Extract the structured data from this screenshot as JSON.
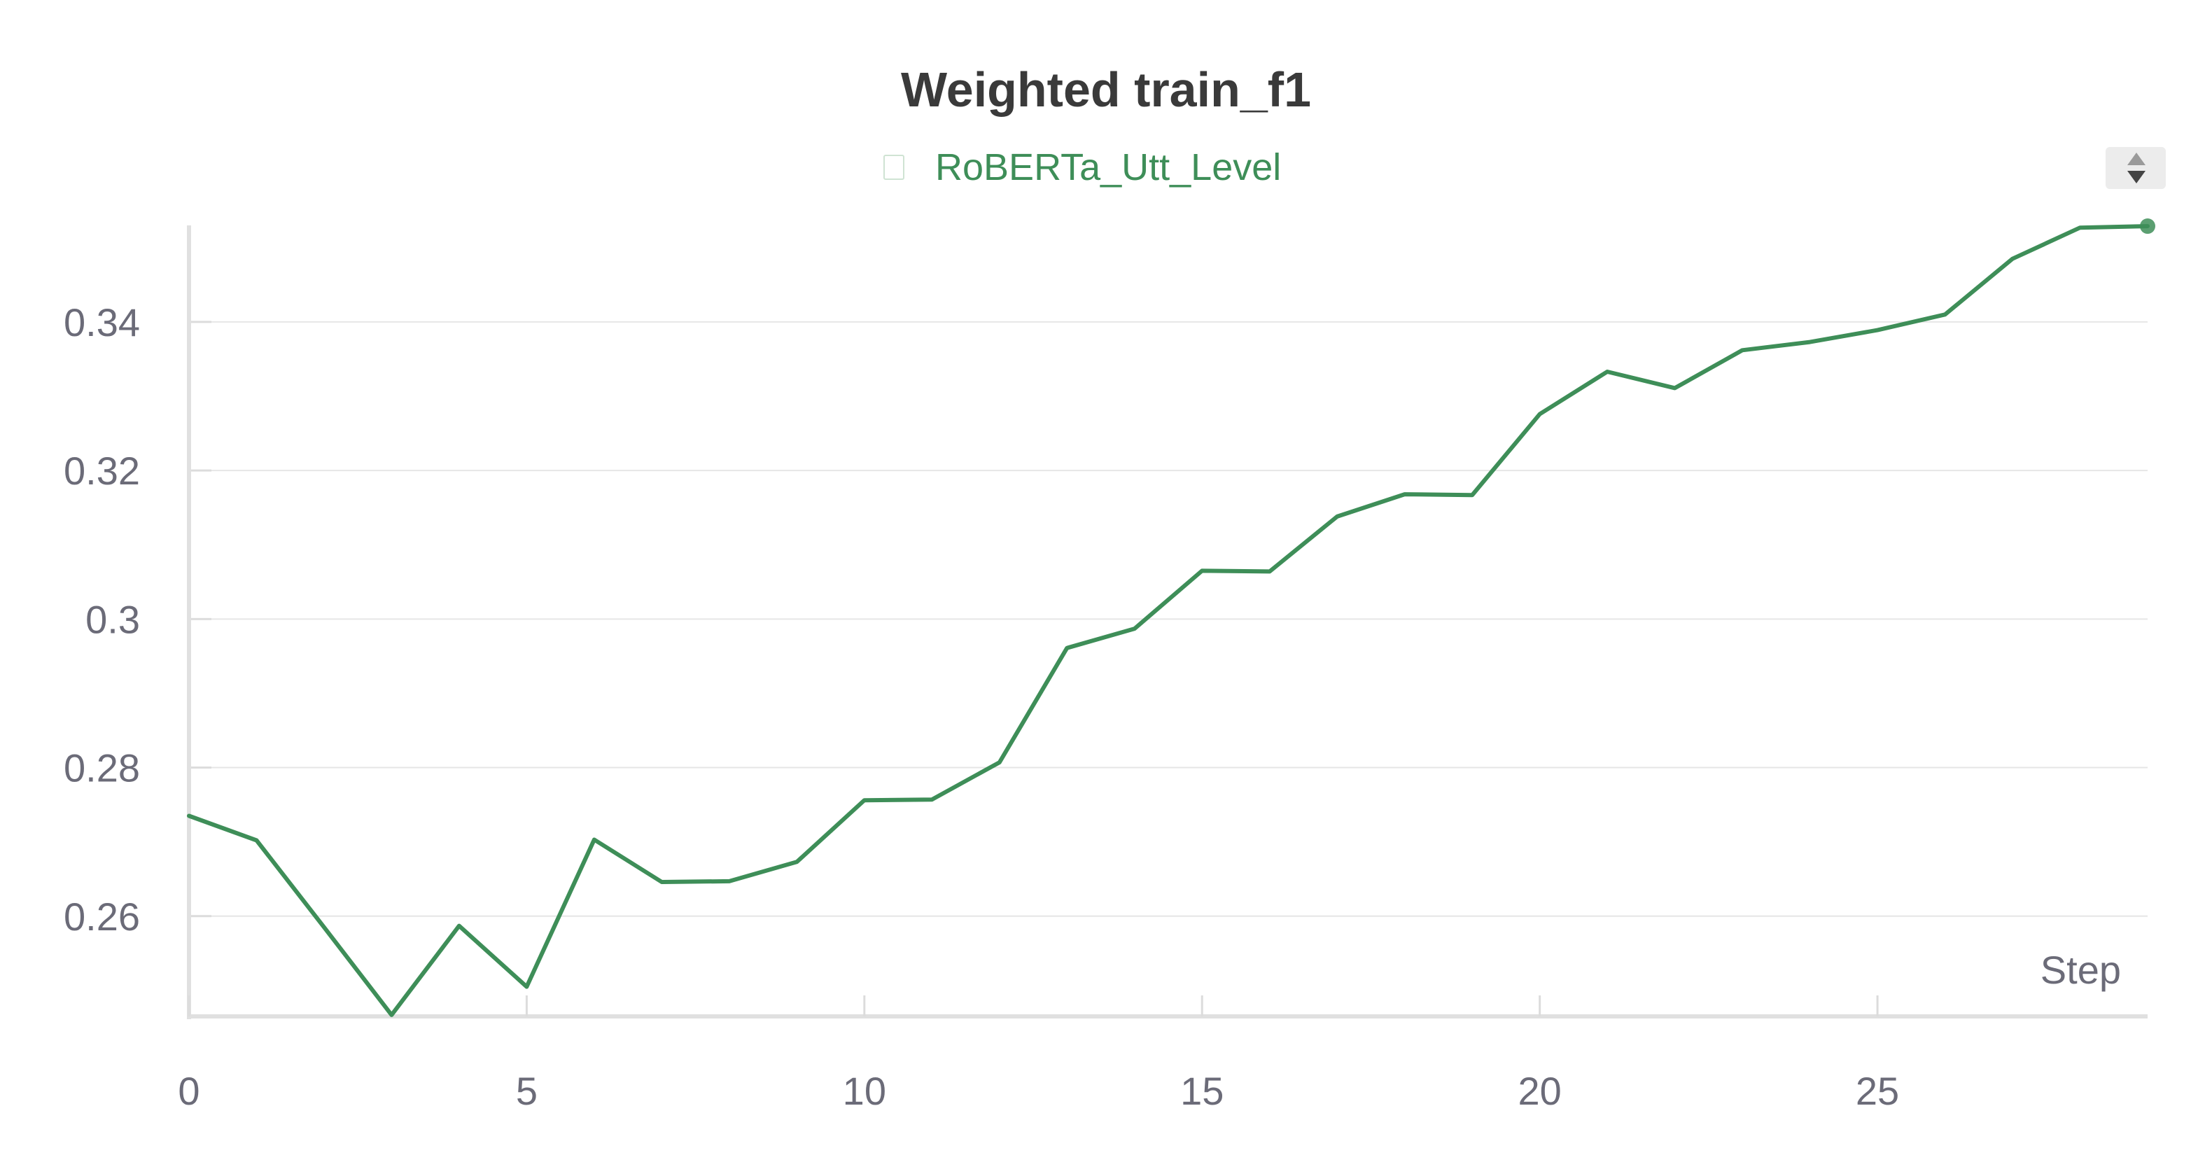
{
  "chart_data": {
    "type": "line",
    "title": "Weighted train_f1",
    "xlabel": "Step",
    "ylabel": "",
    "xlim": [
      0,
      29
    ],
    "ylim": [
      0.2465,
      0.353
    ],
    "x_ticks": [
      0,
      5,
      10,
      15,
      20,
      25
    ],
    "y_ticks": [
      0.26,
      0.28,
      0.3,
      0.32,
      0.34
    ],
    "y_tick_labels": [
      "0.26",
      "0.28",
      "0.3",
      "0.32",
      "0.34"
    ],
    "grid": true,
    "legend_position": "top-center",
    "series": [
      {
        "name": "RoBERTa_Utt_Level",
        "color": "#3e8e58",
        "x": [
          0,
          1,
          2,
          3,
          4,
          5,
          6,
          7,
          8,
          9,
          10,
          11,
          12,
          13,
          14,
          15,
          16,
          17,
          18,
          19,
          20,
          21,
          22,
          23,
          24,
          25,
          26,
          27,
          28,
          29
        ],
        "y": [
          0.2735,
          0.2702,
          0.2585,
          0.2467,
          0.2587,
          0.2505,
          0.2703,
          0.2646,
          0.2647,
          0.2673,
          0.2756,
          0.2757,
          0.2807,
          0.2961,
          0.2987,
          0.3065,
          0.3064,
          0.3138,
          0.3168,
          0.3167,
          0.3276,
          0.3333,
          0.3311,
          0.3362,
          0.3373,
          0.3389,
          0.341,
          0.3485,
          0.3527,
          0.3529
        ]
      }
    ]
  }
}
